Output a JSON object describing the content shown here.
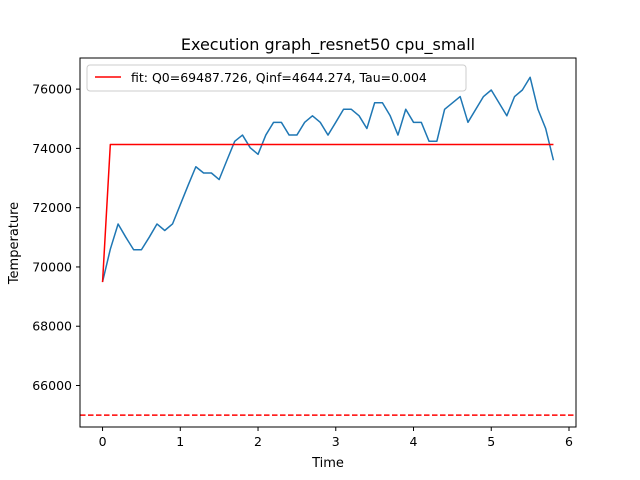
{
  "chart_data": {
    "type": "line",
    "title": "Execution graph_resnet50 cpu_small",
    "xlabel": "Time",
    "ylabel": "Temperature",
    "xlim": [
      -0.29,
      6.09
    ],
    "ylim": [
      64600,
      77050
    ],
    "x_ticks": [
      0,
      1,
      2,
      3,
      4,
      5,
      6
    ],
    "y_ticks": [
      66000,
      68000,
      70000,
      72000,
      74000,
      76000
    ],
    "grid": false,
    "legend_position": "top-left",
    "series": [
      {
        "name": "",
        "color": "#1f77b4",
        "style": "solid",
        "x": [
          0,
          0.1,
          0.2,
          0.3,
          0.4,
          0.5,
          0.6,
          0.7,
          0.8,
          0.9,
          1.0,
          1.1,
          1.2,
          1.3,
          1.4,
          1.5,
          1.6,
          1.7,
          1.8,
          1.9,
          2.0,
          2.1,
          2.2,
          2.3,
          2.4,
          2.5,
          2.6,
          2.7,
          2.8,
          2.9,
          3.0,
          3.1,
          3.2,
          3.3,
          3.4,
          3.5,
          3.6,
          3.7,
          3.8,
          3.9,
          4.0,
          4.1,
          4.2,
          4.3,
          4.4,
          4.6,
          4.7,
          4.9,
          5.0,
          5.2,
          5.3,
          5.4,
          5.5,
          5.6,
          5.7,
          5.8
        ],
        "y": [
          69500,
          70600,
          71450,
          71000,
          70580,
          70580,
          71000,
          71450,
          71230,
          71450,
          72100,
          72750,
          73380,
          73170,
          73170,
          72950,
          73600,
          74240,
          74450,
          74020,
          73800,
          74450,
          74880,
          74880,
          74450,
          74450,
          74880,
          75100,
          74880,
          74450,
          74880,
          75320,
          75320,
          75100,
          74670,
          75540,
          75540,
          75100,
          74450,
          75320,
          74880,
          74880,
          74240,
          74240,
          75320,
          75750,
          74880,
          75750,
          75970,
          75100,
          75750,
          75970,
          76400,
          75320,
          74670,
          73600
        ]
      },
      {
        "name": "fit: Q0=69487.726, Qinf=4644.274, Tau=0.004",
        "color": "#ff0000",
        "style": "solid",
        "x": [
          0,
          0.1,
          5.8
        ],
        "y": [
          69487.726,
          74132,
          74132
        ]
      },
      {
        "name": "",
        "color": "#ff0000",
        "style": "dashed",
        "x": [
          -0.29,
          6.09
        ],
        "y": [
          65000,
          65000
        ]
      }
    ]
  }
}
